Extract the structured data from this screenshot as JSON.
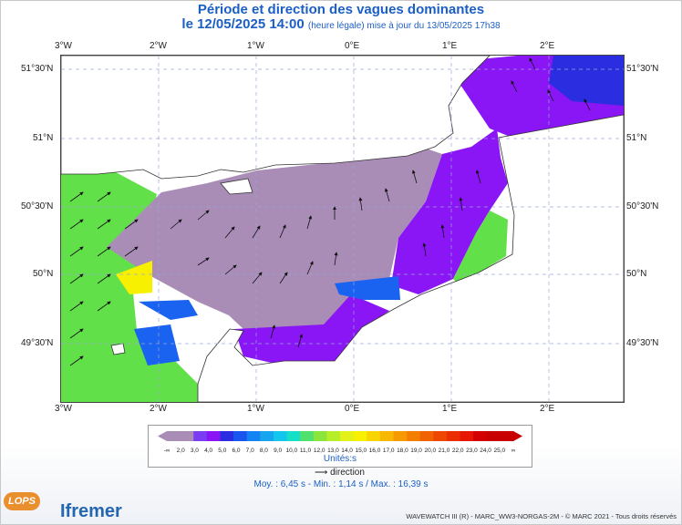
{
  "title": "Période et direction des vagues dominantes",
  "date_label": "le 12/05/2025 14:00",
  "legal_time": "(heure légale) mise à jour du 13/05/2025 17h38",
  "lon_labels": [
    "3°W",
    "2°W",
    "1°W",
    "0°E",
    "1°E",
    "2°E"
  ],
  "lat_labels": [
    "51°30'N",
    "51°N",
    "50°30'N",
    "50°N",
    "49°30'N"
  ],
  "legend": {
    "labels": [
      "-∞",
      "2,0",
      "3,0",
      "4,0",
      "5,0",
      "6,0",
      "7,0",
      "8,0",
      "9,0",
      "10,0",
      "11,0",
      "12,0",
      "13,0",
      "14,0",
      "15,0",
      "16,0",
      "17,0",
      "18,0",
      "19,0",
      "20,0",
      "21,0",
      "22,0",
      "23,0",
      "24,0",
      "25,0",
      "∞"
    ],
    "colors": [
      "#a98db7",
      "#a98db7",
      "#7a3df2",
      "#8a16f5",
      "#2a2de0",
      "#1a55f0",
      "#1584f3",
      "#17a5f0",
      "#14c6ee",
      "#16dfc8",
      "#4fe06e",
      "#8ae63c",
      "#b7ee2a",
      "#e2f218",
      "#f7f000",
      "#f8d400",
      "#f8b700",
      "#f79a00",
      "#f47e00",
      "#f16200",
      "#ee4700",
      "#eb2e00",
      "#e61600",
      "#d40000",
      "#c80000",
      "#c80000"
    ],
    "unit": "Unités",
    "direction_label": "direction"
  },
  "stats": "Moy. : 6,45 s   -   Min. : 1,14 s / Max. : 16,39 s",
  "credit": "WAVEWATCH III (R) - MARC_WW3-NORGAS-2M - © MARC 2021 - Tous droits réservés",
  "logos": {
    "lops": "LOPS",
    "ifremer": "Ifremer"
  }
}
